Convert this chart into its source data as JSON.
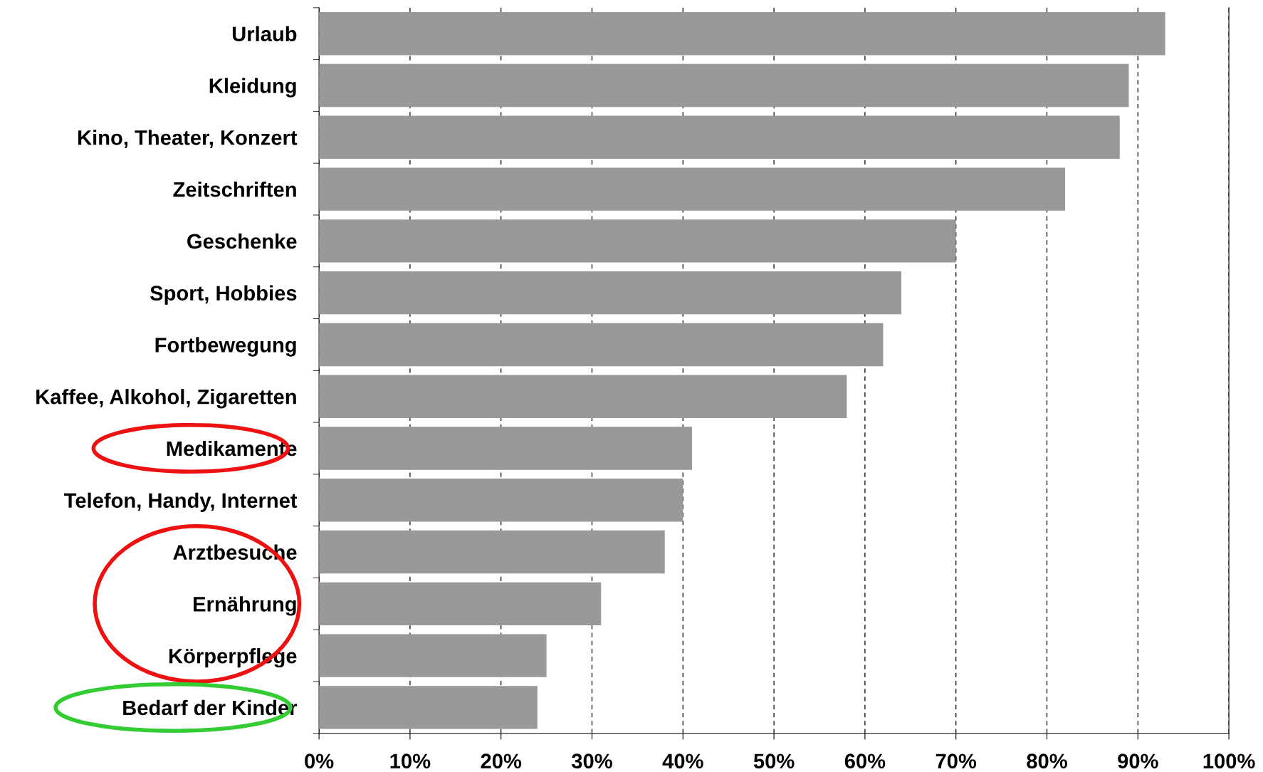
{
  "chart_data": {
    "type": "bar",
    "orientation": "horizontal",
    "categories": [
      "Urlaub",
      "Kleidung",
      "Kino, Theater, Konzert",
      "Zeitschriften",
      "Geschenke",
      "Sport, Hobbies",
      "Fortbewegung",
      "Kaffee, Alkohol, Zigaretten",
      "Medikamente",
      "Telefon, Handy, Internet",
      "Arztbesuche",
      "Ernährung",
      "Körperpflege",
      "Bedarf der Kinder"
    ],
    "values": [
      93,
      89,
      88,
      82,
      70,
      64,
      62,
      58,
      41,
      40,
      38,
      31,
      25,
      24
    ],
    "color": "#999999",
    "xlim": [
      0,
      100
    ],
    "xticks": [
      {
        "value": 0,
        "label": "0%"
      },
      {
        "value": 10,
        "label": "10%"
      },
      {
        "value": 20,
        "label": "20%"
      },
      {
        "value": 30,
        "label": "30%"
      },
      {
        "value": 40,
        "label": "40%"
      },
      {
        "value": 50,
        "label": "50%"
      },
      {
        "value": 60,
        "label": "60%"
      },
      {
        "value": 70,
        "label": "70%"
      },
      {
        "value": 80,
        "label": "80%"
      },
      {
        "value": 90,
        "label": "90%"
      },
      {
        "value": 100,
        "label": "100%"
      }
    ],
    "grid": "x",
    "legend": false
  }
}
